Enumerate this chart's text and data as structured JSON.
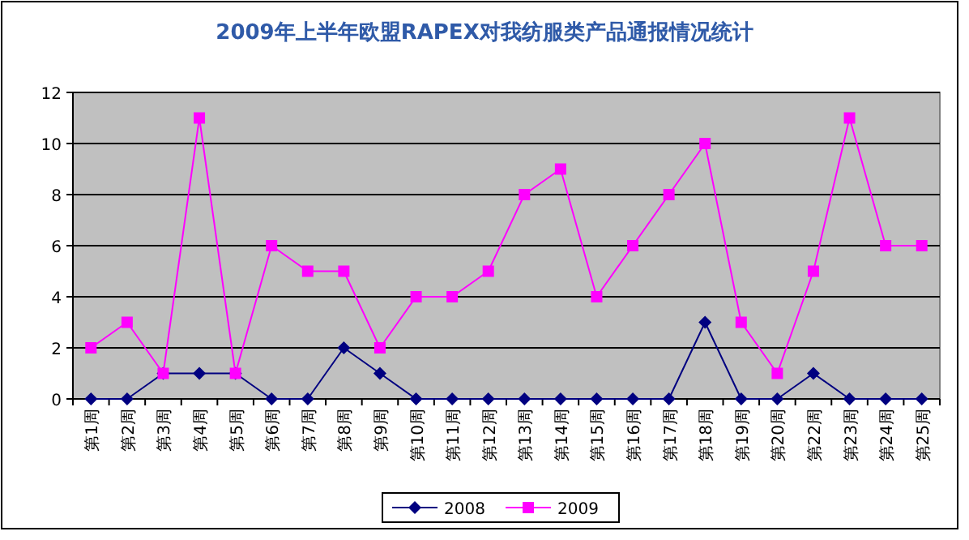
{
  "chart_data": {
    "type": "line",
    "title": "2009年上半年欧盟RAPEX对我纺服类产品通报情况统计",
    "categories": [
      "第1周",
      "第2周",
      "第3周",
      "第4周",
      "第5周",
      "第6周",
      "第7周",
      "第8周",
      "第9周",
      "第10周",
      "第11周",
      "第12周",
      "第13周",
      "第14周",
      "第15周",
      "第16周",
      "第17周",
      "第18周",
      "第19周",
      "第20周",
      "第22周",
      "第23周",
      "第24周",
      "第25周"
    ],
    "series": [
      {
        "name": "2008",
        "color": "#000080",
        "marker": "diamond",
        "values": [
          0,
          0,
          1,
          1,
          1,
          0,
          0,
          2,
          1,
          0,
          0,
          0,
          0,
          0,
          0,
          0,
          0,
          3,
          0,
          0,
          1,
          0,
          0,
          0
        ]
      },
      {
        "name": "2009",
        "color": "#ff00ff",
        "marker": "square",
        "values": [
          2,
          3,
          1,
          11,
          1,
          6,
          5,
          5,
          2,
          4,
          4,
          5,
          8,
          9,
          4,
          6,
          8,
          10,
          3,
          1,
          5,
          11,
          6,
          6
        ]
      }
    ],
    "ylim": [
      0,
      12
    ],
    "yticks": [
      0,
      2,
      4,
      6,
      8,
      10,
      12
    ],
    "grid": "y",
    "legend": "bottom"
  }
}
